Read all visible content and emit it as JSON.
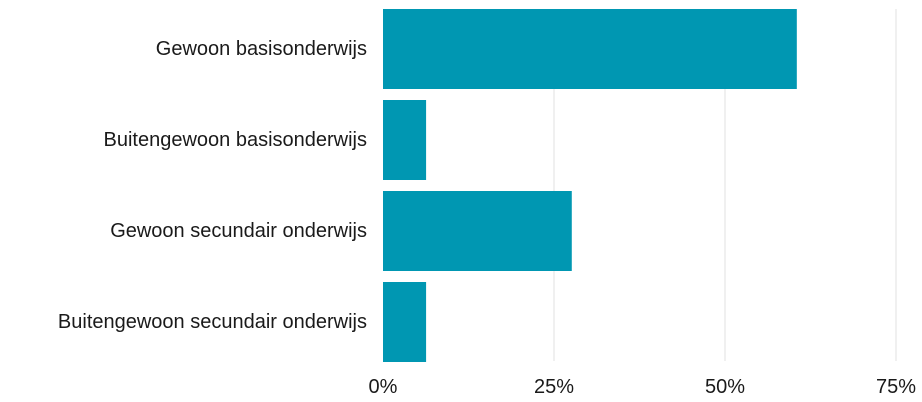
{
  "chart_data": {
    "type": "bar",
    "orientation": "horizontal",
    "categories": [
      "Gewoon basisonderwijs",
      "Buitengewoon basisonderwijs",
      "Gewoon secundair onderwijs",
      "Buitengewoon secundair onderwijs"
    ],
    "values": [
      60.5,
      6.3,
      27.6,
      6.3
    ],
    "value_unit": "%",
    "xlim": [
      0,
      75
    ],
    "x_ticks": [
      0,
      25,
      50,
      75
    ],
    "x_tick_labels": [
      "0%",
      "25%",
      "50%",
      "75%"
    ],
    "title": "",
    "xlabel": "",
    "ylabel": "",
    "grid": "vertical",
    "legend": "none",
    "bar_color": "#0097b2",
    "grid_color": "#e2e2e2"
  }
}
